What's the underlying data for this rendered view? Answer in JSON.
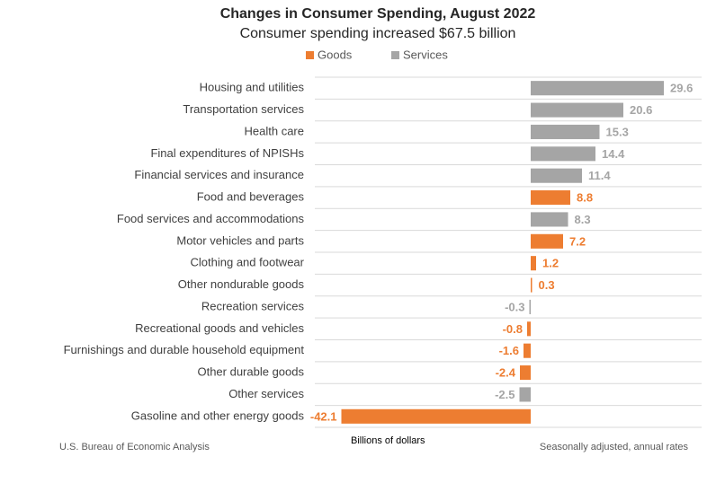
{
  "chart_data": {
    "type": "bar",
    "orientation": "horizontal",
    "title": "Changes in Consumer Spending, August 2022",
    "subtitle": "Consumer spending increased $67.5 billion",
    "x_label": "Billions of dollars",
    "source": "U.S. Bureau of Economic Analysis",
    "note": "Seasonally adjusted, annual rates",
    "categories": [
      "Housing and utilities",
      "Transportation services",
      "Health care",
      "Final expenditures of NPISHs",
      "Financial services and insurance",
      "Food and beverages",
      "Food services and accommodations",
      "Motor vehicles and parts",
      "Clothing and footwear",
      "Other nondurable goods",
      "Recreation services",
      "Recreational goods and vehicles",
      "Furnishings and durable household equipment",
      "Other durable goods",
      "Other services",
      "Gasoline and other energy goods"
    ],
    "series": [
      {
        "name": "Goods",
        "color": "#ed7d31",
        "values": [
          null,
          null,
          null,
          null,
          null,
          8.8,
          null,
          7.2,
          1.2,
          0.3,
          null,
          -0.8,
          -1.6,
          -2.4,
          null,
          -42.1
        ]
      },
      {
        "name": "Services",
        "color": "#a5a5a5",
        "values": [
          29.6,
          20.6,
          15.3,
          14.4,
          11.4,
          null,
          8.3,
          null,
          null,
          null,
          -0.3,
          null,
          null,
          null,
          -2.5,
          null
        ]
      }
    ],
    "xlim": [
      -48,
      38
    ],
    "grid": true,
    "legend": "top"
  }
}
